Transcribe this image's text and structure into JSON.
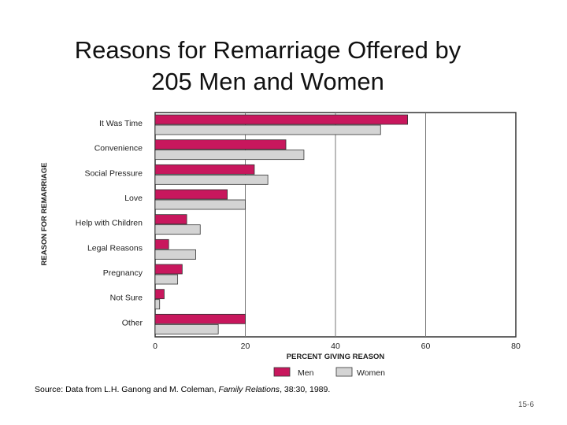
{
  "slide": {
    "title": "Reasons for Remarriage Offered by\n205 Men and Women",
    "source_prefix": "Source: Data from L.H. Ganong and M. Coleman, ",
    "source_journal": "Family Relations",
    "source_suffix": ", 38:30, 1989.",
    "slide_number": "15-6"
  },
  "chart_data": {
    "type": "bar",
    "orientation": "horizontal",
    "title": "",
    "xlabel": "PERCENT GIVING REASON",
    "ylabel": "REASON FOR REMARRIAGE",
    "xlim": [
      0,
      80
    ],
    "xticks": [
      "0",
      "20",
      "40",
      "60",
      "80"
    ],
    "grid": "vertical",
    "legend": "bottom",
    "categories": [
      "It Was Time",
      "Convenience",
      "Social Pressure",
      "Love",
      "Help with Children",
      "Legal Reasons",
      "Pregnancy",
      "Not Sure",
      "Other"
    ],
    "series": [
      {
        "name": "Men",
        "color": "#c8175d",
        "values": [
          56,
          29,
          22,
          16,
          7,
          3,
          6,
          2,
          20
        ]
      },
      {
        "name": "Women",
        "color": "#d4d4d4",
        "values": [
          50,
          33,
          25,
          20,
          10,
          9,
          5,
          1,
          14
        ]
      }
    ]
  }
}
